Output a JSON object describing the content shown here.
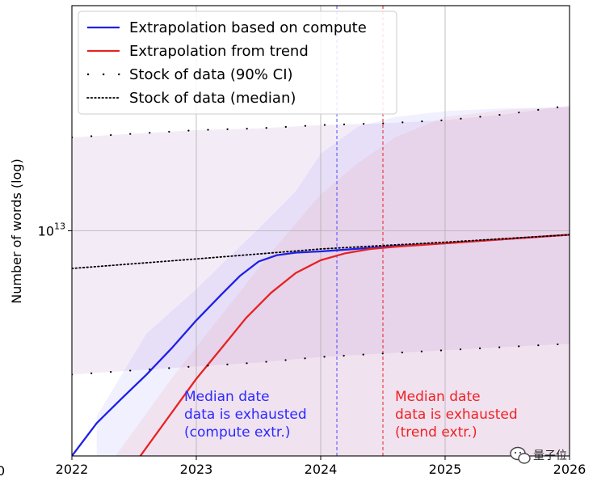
{
  "chart_data": {
    "type": "line",
    "title": "",
    "xlabel": "",
    "ylabel": "Number of words (log)",
    "x_ticks": [
      "2022",
      "2023",
      "2024",
      "2025",
      "2026"
    ],
    "x_tick_values": [
      2022,
      2023,
      2024,
      2025,
      2026
    ],
    "xlim": [
      2022,
      2026
    ],
    "y_scale": "log",
    "ylim": [
      1000000000000.0,
      100000000000000.0
    ],
    "y_tick_labels": [
      {
        "value": 10000000000000.0,
        "label_base": "10",
        "label_exp": "13"
      }
    ],
    "grid": true,
    "legend_placement": "top-left",
    "legend": [
      {
        "label": "Extrapolation based on compute",
        "style": "solid",
        "color": "#1f1fe6"
      },
      {
        "label": "Extrapolation from trend",
        "style": "solid",
        "color": "#e62222"
      },
      {
        "label": "Stock of data (90% CI)",
        "style": "sparse-dots",
        "color": "#000000"
      },
      {
        "label": "Stock of data (median)",
        "style": "dotted",
        "color": "#000000"
      }
    ],
    "series": [
      {
        "name": "Extrapolation based on compute",
        "color": "#1f1fe6",
        "x": [
          2022.0,
          2022.2,
          2022.4,
          2022.6,
          2022.8,
          2023.0,
          2023.2,
          2023.35,
          2023.5,
          2023.65,
          2023.8,
          2024.0,
          2024.2,
          2024.4,
          2024.6,
          2025.0,
          2025.5,
          2026.0
        ],
        "y": [
          1000000000000.0,
          1400000000000.0,
          1800000000000.0,
          2300000000000.0,
          3000000000000.0,
          4000000000000.0,
          5200000000000.0,
          6300000000000.0,
          7300000000000.0,
          7800000000000.0,
          8000000000000.0,
          8100000000000.0,
          8250000000000.0,
          8400000000000.0,
          8550000000000.0,
          8800000000000.0,
          9200000000000.0,
          9600000000000.0
        ]
      },
      {
        "name": "Extrapolation from trend",
        "color": "#e62222",
        "x": [
          2022.55,
          2022.8,
          2023.0,
          2023.2,
          2023.4,
          2023.6,
          2023.8,
          2024.0,
          2024.2,
          2024.4,
          2024.6,
          2025.0,
          2025.5,
          2026.0
        ],
        "y": [
          1000000000000.0,
          1550000000000.0,
          2200000000000.0,
          3000000000000.0,
          4100000000000.0,
          5300000000000.0,
          6500000000000.0,
          7400000000000.0,
          7950000000000.0,
          8300000000000.0,
          8500000000000.0,
          8800000000000.0,
          9200000000000.0,
          9600000000000.0
        ]
      },
      {
        "name": "Stock of data (median)",
        "color": "#000000",
        "style": "dotted",
        "x": [
          2022.0,
          2023.0,
          2024.0,
          2024.5,
          2025.0,
          2026.0
        ],
        "y": [
          6800000000000.0,
          7500000000000.0,
          8300000000000.0,
          8600000000000.0,
          8900000000000.0,
          9600000000000.0
        ]
      },
      {
        "name": "Stock of data (90% CI) upper",
        "color": "#000000",
        "style": "sparse-dots",
        "x": [
          2022.0,
          2022.5,
          2023.0,
          2023.5,
          2024.0,
          2024.5,
          2025.0,
          2025.5,
          2026.0
        ],
        "y": [
          26000000000000.0,
          27000000000000.0,
          28000000000000.0,
          28500000000000.0,
          29500000000000.0,
          30000000000000.0,
          31000000000000.0,
          33000000000000.0,
          36000000000000.0
        ]
      },
      {
        "name": "Stock of data (90% CI) lower",
        "color": "#000000",
        "style": "sparse-dots",
        "x": [
          2022.0,
          2022.5,
          2023.0,
          2023.5,
          2024.0,
          2024.5,
          2025.0,
          2025.5,
          2026.0
        ],
        "y": [
          2300000000000.0,
          2400000000000.0,
          2500000000000.0,
          2600000000000.0,
          2750000000000.0,
          2850000000000.0,
          2950000000000.0,
          3050000000000.0,
          3150000000000.0
        ]
      }
    ],
    "bands": [
      {
        "name": "compute CI",
        "color": "#3a3aff",
        "opacity": 0.08,
        "x": [
          2022.2,
          2022.6,
          2023.0,
          2023.3,
          2023.5,
          2023.8,
          2024.0,
          2024.3,
          2024.6,
          2025.0,
          2025.5,
          2026.0
        ],
        "upper": [
          1500000000000.0,
          3500000000000.0,
          5500000000000.0,
          8000000000000.0,
          10200000000000.0,
          15000000000000.0,
          22000000000000.0,
          29000000000000.0,
          32000000000000.0,
          34000000000000.0,
          35000000000000.0,
          35500000000000.0
        ],
        "lower": [
          1000000000000.0,
          1000000000000.0,
          1000000000000.0,
          1000000000000.0,
          1000000000000.0,
          1000000000000.0,
          1000000000000.0,
          1000000000000.0,
          1000000000000.0,
          1000000000000.0,
          1000000000000.0,
          1000000000000.0
        ]
      },
      {
        "name": "trend CI",
        "color": "#ff2a2a",
        "opacity": 0.07,
        "x": [
          2022.35,
          2022.8,
          2023.2,
          2023.6,
          2024.0,
          2024.3,
          2024.6,
          2025.0,
          2025.5,
          2026.0
        ],
        "upper": [
          1000000000000.0,
          2200000000000.0,
          4200000000000.0,
          8000000000000.0,
          14500000000000.0,
          20000000000000.0,
          26000000000000.0,
          32000000000000.0,
          34500000000000.0,
          35500000000000.0
        ],
        "lower": [
          1000000000000.0,
          1000000000000.0,
          1000000000000.0,
          1000000000000.0,
          1000000000000.0,
          1000000000000.0,
          1000000000000.0,
          1000000000000.0,
          1000000000000.0,
          1000000000000.0
        ]
      },
      {
        "name": "Stock of data (90% CI)",
        "color": "#b080c8",
        "opacity": 0.15,
        "x": [
          2022.0,
          2022.5,
          2023.0,
          2023.5,
          2024.0,
          2024.5,
          2025.0,
          2025.5,
          2026.0
        ],
        "upper": [
          26000000000000.0,
          27000000000000.0,
          28000000000000.0,
          28500000000000.0,
          29500000000000.0,
          30000000000000.0,
          31000000000000.0,
          33000000000000.0,
          36000000000000.0
        ],
        "lower": [
          2300000000000.0,
          2400000000000.0,
          2500000000000.0,
          2600000000000.0,
          2750000000000.0,
          2850000000000.0,
          2950000000000.0,
          3050000000000.0,
          3150000000000.0
        ]
      }
    ],
    "vlines": [
      {
        "x": 2024.13,
        "color": "#4a4aff",
        "style": "dashed"
      },
      {
        "x": 2024.5,
        "color": "#e62222",
        "style": "dashed"
      }
    ],
    "annotations": [
      {
        "color": "#2a2aff",
        "lines": [
          "Median date",
          "data is exhausted",
          "(compute extr.)"
        ]
      },
      {
        "color": "#ee2222",
        "lines": [
          "Median date",
          "data is exhausted",
          "(trend extr.)"
        ]
      }
    ]
  },
  "watermark": {
    "text": "量子位",
    "icon": "wechat-icon"
  },
  "edge_fragment": {
    "text": "0"
  }
}
